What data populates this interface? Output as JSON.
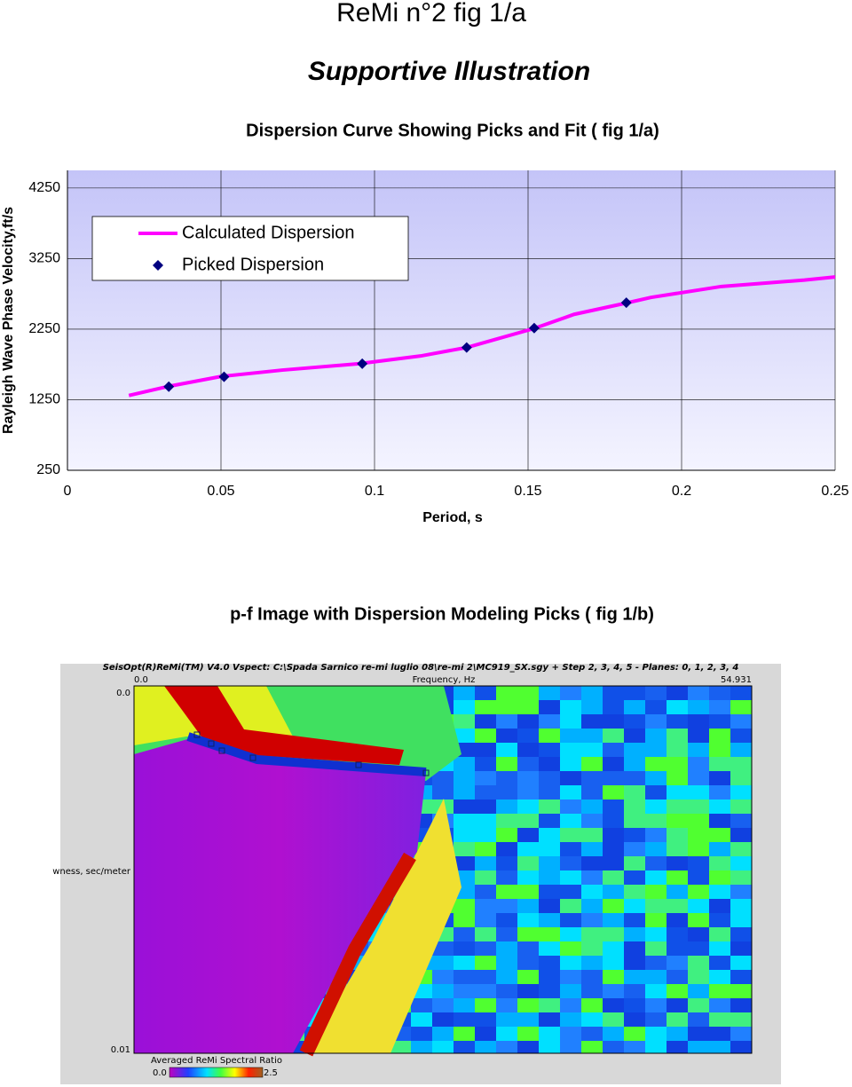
{
  "header": {
    "title": "ReMi n°2 fig 1/a",
    "subtitle": "Supportive Illustration"
  },
  "chart_data": {
    "type": "line",
    "title": "Dispersion Curve Showing Picks and Fit ( fig 1/a)",
    "x_label": "Period, s",
    "y_label": "Rayleigh Wave Phase Velocity,ft/s",
    "xlim": [
      0,
      0.25
    ],
    "xticks": [
      0,
      0.05,
      0.1,
      0.15,
      0.2,
      0.25
    ],
    "ylim": [
      250,
      4500
    ],
    "yticks": [
      250,
      1250,
      2250,
      3250,
      4250
    ],
    "grid": true,
    "legend": "upper left",
    "series": [
      {
        "name": "Calculated Dispersion",
        "color": "#ff00ff",
        "type": "line",
        "x": [
          0.02,
          0.033,
          0.05,
          0.07,
          0.095,
          0.115,
          0.13,
          0.152,
          0.165,
          0.182,
          0.19,
          0.213,
          0.24,
          0.25
        ],
        "values": [
          1310,
          1440,
          1580,
          1670,
          1760,
          1870,
          1990,
          2260,
          2460,
          2620,
          2700,
          2855,
          2945,
          2990
        ]
      },
      {
        "name": "Picked Dispersion",
        "color": "#000080",
        "type": "scatter",
        "x": [
          0.033,
          0.051,
          0.096,
          0.13,
          0.152,
          0.182
        ],
        "values": [
          1435,
          1575,
          1760,
          1990,
          2265,
          2625
        ]
      }
    ]
  },
  "figure_b": {
    "title": "p-f Image with Dispersion Modeling Picks ( fig 1/b)",
    "header": "SeisOpt(R)ReMi(TM) V4.0 Vspect: C:\\Spada Sarnico re-mi luglio 08\\re-mi 2\\MC919_SX.sgy + Step 2, 3, 4, 5 - Planes: 0, 1, 2, 3, 4",
    "x_label": "Frequency, Hz",
    "x_min": "0.0",
    "x_max": "54.931",
    "y_label": "wness, sec/meter",
    "y_min": "0.0",
    "y_max": "0.01",
    "colorbar_label": "Averaged ReMi Spectral Ratio",
    "colorbar_min": "0.0",
    "colorbar_max": "2.5"
  }
}
